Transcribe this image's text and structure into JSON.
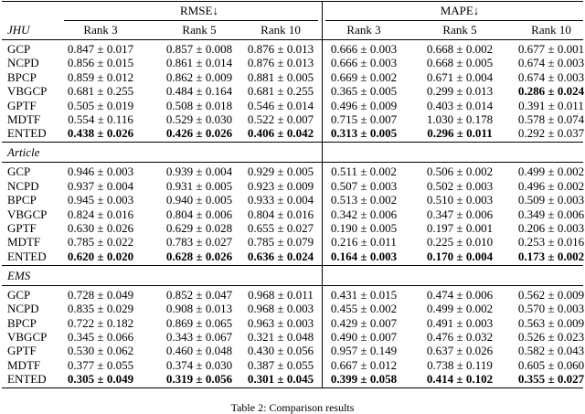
{
  "table": {
    "groups": [
      "RMSE↓",
      "MAPE↓"
    ],
    "columns": [
      "Rank 3",
      "Rank 5",
      "Rank 10",
      "Rank 3",
      "Rank 5",
      "Rank 10"
    ],
    "sections": [
      {
        "label": "JHU",
        "rows": [
          {
            "method": "GCP",
            "cells": [
              "0.847 ± 0.017",
              "0.857 ± 0.008",
              "0.876 ± 0.013",
              "0.666 ± 0.003",
              "0.668 ± 0.002",
              "0.677 ± 0.001"
            ],
            "bold": []
          },
          {
            "method": "NCPD",
            "cells": [
              "0.856 ± 0.015",
              "0.861 ± 0.014",
              "0.876 ± 0.013",
              "0.666 ± 0.003",
              "0.668 ± 0.005",
              "0.674 ± 0.003"
            ],
            "bold": []
          },
          {
            "method": "BPCP",
            "cells": [
              "0.859 ± 0.012",
              "0.862 ± 0.009",
              "0.881 ± 0.005",
              "0.669 ± 0.002",
              "0.671 ± 0.004",
              "0.674 ± 0.003"
            ],
            "bold": []
          },
          {
            "method": "VBGCP",
            "cells": [
              "0.681 ± 0.255",
              "0.484 ± 0.164",
              "0.681 ± 0.255",
              "0.365 ± 0.005",
              "0.299 ± 0.013",
              "0.286 ± 0.024"
            ],
            "bold": [
              5
            ]
          },
          {
            "method": "GPTF",
            "cells": [
              "0.505 ± 0.019",
              "0.508 ± 0.018",
              "0.546 ± 0.014",
              "0.496 ± 0.009",
              "0.403 ± 0.014",
              "0.391 ± 0.011"
            ],
            "bold": []
          },
          {
            "method": "MDTF",
            "cells": [
              "0.554 ± 0.116",
              "0.529 ± 0.030",
              "0.522 ± 0.007",
              "0.715 ± 0.007",
              "1.030 ± 0.178",
              "0.578 ± 0.074"
            ],
            "bold": []
          },
          {
            "method": "ENTED",
            "cells": [
              "0.438 ± 0.026",
              "0.426 ± 0.026",
              "0.406 ± 0.042",
              "0.313 ± 0.005",
              "0.296 ± 0.011",
              "0.292 ± 0.037"
            ],
            "bold": [
              0,
              1,
              2,
              3,
              4
            ]
          }
        ]
      },
      {
        "label": "Article",
        "rows": [
          {
            "method": "GCP",
            "cells": [
              "0.946 ± 0.003",
              "0.939 ± 0.004",
              "0.929 ± 0.005",
              "0.511 ± 0.002",
              "0.506 ± 0.002",
              "0.499 ± 0.002"
            ],
            "bold": []
          },
          {
            "method": "NCPD",
            "cells": [
              "0.937 ± 0.004",
              "0.931 ± 0.005",
              "0.923 ± 0.009",
              "0.507 ± 0.003",
              "0.502 ± 0.003",
              "0.496 ± 0.002"
            ],
            "bold": []
          },
          {
            "method": "BPCP",
            "cells": [
              "0.945 ± 0.003",
              "0.940 ± 0.005",
              "0.933 ± 0.004",
              "0.513 ± 0.002",
              "0.510 ± 0.003",
              "0.509 ± 0.003"
            ],
            "bold": []
          },
          {
            "method": "VBGCP",
            "cells": [
              "0.824 ± 0.016",
              "0.804 ± 0.006",
              "0.804 ± 0.016",
              "0.342 ± 0.006",
              "0.347 ± 0.006",
              "0.349 ± 0.006"
            ],
            "bold": []
          },
          {
            "method": "GPTF",
            "cells": [
              "0.630 ± 0.026",
              "0.629 ± 0.028",
              "0.655 ± 0.027",
              "0.190 ± 0.005",
              "0.197 ± 0.001",
              "0.206 ± 0.003"
            ],
            "bold": []
          },
          {
            "method": "MDTF",
            "cells": [
              "0.785 ± 0.022",
              "0.783 ± 0.027",
              "0.785 ± 0.079",
              "0.216 ± 0.011",
              "0.225 ± 0.010",
              "0.253 ± 0.016"
            ],
            "bold": []
          },
          {
            "method": "ENTED",
            "cells": [
              "0.620 ± 0.020",
              "0.628 ± 0.026",
              "0.636 ± 0.024",
              "0.164 ± 0.003",
              "0.170 ± 0.004",
              "0.173 ± 0.002"
            ],
            "bold": [
              0,
              1,
              2,
              3,
              4,
              5
            ]
          }
        ]
      },
      {
        "label": "EMS",
        "rows": [
          {
            "method": "GCP",
            "cells": [
              "0.728 ± 0.049",
              "0.852 ± 0.047",
              "0.968 ± 0.011",
              "0.431 ± 0.015",
              "0.474 ± 0.006",
              "0.562 ± 0.009"
            ],
            "bold": []
          },
          {
            "method": "NCPD",
            "cells": [
              "0.835 ± 0.029",
              "0.908 ± 0.013",
              "0.968 ± 0.003",
              "0.455 ± 0.002",
              "0.499 ± 0.002",
              "0.570 ± 0.003"
            ],
            "bold": []
          },
          {
            "method": "BPCP",
            "cells": [
              "0.722 ± 0.182",
              "0.869 ± 0.065",
              "0.963 ± 0.003",
              "0.429 ± 0.007",
              "0.491 ± 0.003",
              "0.563 ± 0.009"
            ],
            "bold": []
          },
          {
            "method": "VBGCP",
            "cells": [
              "0.345 ± 0.066",
              "0.343 ± 0.067",
              "0.321 ± 0.048",
              "0.490 ± 0.007",
              "0.476 ± 0.032",
              "0.526 ± 0.023"
            ],
            "bold": []
          },
          {
            "method": "GPTF",
            "cells": [
              "0.530 ± 0.062",
              "0.460 ± 0.048",
              "0.430 ± 0.056",
              "0.957 ± 0.149",
              "0.637 ± 0.026",
              "0.582 ± 0.043"
            ],
            "bold": []
          },
          {
            "method": "MDTF",
            "cells": [
              "0.377 ± 0.055",
              "0.374 ± 0.030",
              "0.387 ± 0.055",
              "0.667 ± 0.012",
              "0.738 ± 0.119",
              "0.605 ± 0.060"
            ],
            "bold": []
          },
          {
            "method": "ENTED",
            "cells": [
              "0.305 ± 0.049",
              "0.319 ± 0.056",
              "0.301 ± 0.045",
              "0.399 ± 0.058",
              "0.414 ± 0.102",
              "0.355 ± 0.027"
            ],
            "bold": [
              0,
              1,
              2,
              3,
              4,
              5
            ]
          }
        ]
      }
    ],
    "caption": "Table 2: Comparison results"
  }
}
